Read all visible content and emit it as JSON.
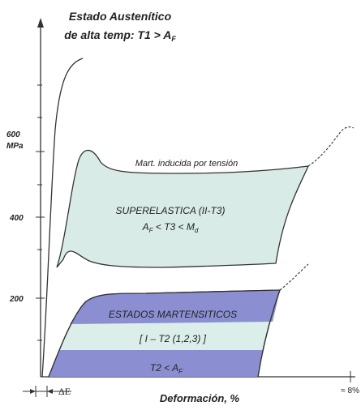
{
  "title": {
    "line1": "Estado Austenítico",
    "line2": "de alta temp: T1 > A",
    "line2_sub": "F"
  },
  "y_axis": {
    "unit_value": "600",
    "unit": "MPa",
    "ticks": [
      "400",
      "200"
    ]
  },
  "x_axis": {
    "label": "Deformación, %",
    "delta_e": "ΔE",
    "end_label": "≈ 8%"
  },
  "regions": {
    "induced_label": "Mart. inducida por tensión",
    "superelastic_line1": "SUPERELASTICA (II-T3)",
    "superelastic_line2_a": "A",
    "superelastic_line2_b": " < T3 < M",
    "superelastic_sub_f": "F",
    "superelastic_sub_d": "d",
    "martensitic_title": "ESTADOS MARTENSITICOS",
    "martensitic_mid": "[ I – T2 (1,2,3) ]",
    "martensitic_bottom_a": "T2 < A",
    "martensitic_bottom_sub": "F"
  },
  "colors": {
    "superelastic_fill": "#d8ebe6",
    "martensite_dark": "#8b8fd2",
    "martensite_light": "#dbeeea",
    "line": "#333333"
  }
}
